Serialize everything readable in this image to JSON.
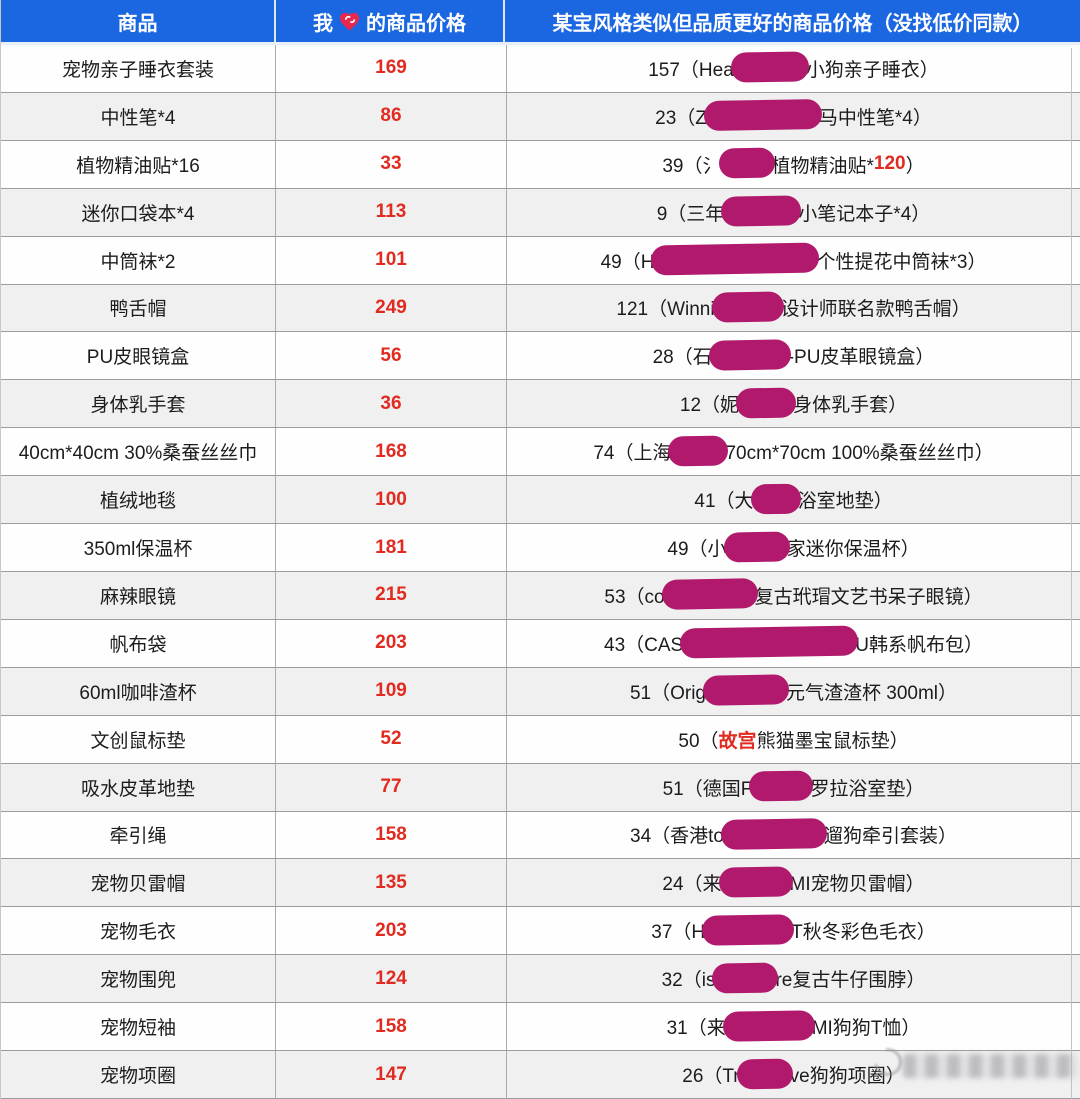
{
  "header": {
    "product": "商品",
    "my_price_prefix": "我",
    "my_price_suffix": "的商品价格",
    "heart_icon": "heart-sticker-icon",
    "compare": "某宝风格类似但品质更好的商品价格（没找低价同款）"
  },
  "colors": {
    "header_bg": "#1b67e2",
    "price_red": "#e12b20",
    "redaction_magenta": "#b11a6c",
    "row_alt_bg": "#f0f0f1"
  },
  "watermark_icon": "blurred-watermark",
  "rows": [
    {
      "product": "宠物亲子睡衣套装",
      "my_price": "169",
      "compare": [
        {
          "t": "157（Hea"
        },
        {
          "blob": 78
        },
        {
          "t": "小狗亲子睡衣）"
        }
      ]
    },
    {
      "product": "中性笔*4",
      "my_price": "86",
      "compare": [
        {
          "t": "23（Z"
        },
        {
          "blob": 118
        },
        {
          "t": "马中性笔*4）"
        }
      ]
    },
    {
      "product": "植物精油贴*16",
      "my_price": "33",
      "compare": [
        {
          "t": "39（氵"
        },
        {
          "blob": 56
        },
        {
          "t": "植物精油贴*"
        },
        {
          "t": "120",
          "red": true
        },
        {
          "t": "）"
        }
      ]
    },
    {
      "product": "迷你口袋本*4",
      "my_price": "113",
      "compare": [
        {
          "t": "9（三年"
        },
        {
          "blob": 80
        },
        {
          "t": "小笔记本子*4）"
        }
      ]
    },
    {
      "product": "中筒袜*2",
      "my_price": "101",
      "compare": [
        {
          "t": "49（H"
        },
        {
          "blob": 168
        },
        {
          "t": "个性提花中筒袜*3）"
        }
      ]
    },
    {
      "product": "鸭舌帽",
      "my_price": "249",
      "compare": [
        {
          "t": "121（Winni"
        },
        {
          "blob": 72
        },
        {
          "t": "设计师联名款鸭舌帽）"
        }
      ]
    },
    {
      "product": "PU皮眼镜盒",
      "my_price": "56",
      "compare": [
        {
          "t": "28（石"
        },
        {
          "blob": 82
        },
        {
          "t": "-PU皮革眼镜盒）"
        }
      ]
    },
    {
      "product": "身体乳手套",
      "my_price": "36",
      "compare": [
        {
          "t": "12（妮"
        },
        {
          "blob": 60
        },
        {
          "t": "身体乳手套）"
        }
      ]
    },
    {
      "product": "40cm*40cm 30%桑蚕丝丝巾",
      "my_price": "168",
      "compare": [
        {
          "t": "74（上海"
        },
        {
          "blob": 60
        },
        {
          "t": "70cm*70cm 100%桑蚕丝丝巾）"
        }
      ]
    },
    {
      "product": "植绒地毯",
      "my_price": "100",
      "compare": [
        {
          "t": "41（大"
        },
        {
          "blob": 50
        },
        {
          "t": "浴室地垫）"
        }
      ]
    },
    {
      "product": "350ml保温杯",
      "my_price": "181",
      "compare": [
        {
          "t": "49（小"
        },
        {
          "blob": 66
        },
        {
          "t": "家迷你保温杯）"
        }
      ]
    },
    {
      "product": "麻辣眼镜",
      "my_price": "215",
      "compare": [
        {
          "t": "53（co"
        },
        {
          "blob": 96
        },
        {
          "t": "复古玳瑁文艺书呆子眼镜）"
        }
      ]
    },
    {
      "product": "帆布袋",
      "my_price": "203",
      "compare": [
        {
          "t": "43（CAS"
        },
        {
          "blob": 178
        },
        {
          "t": "U韩系帆布包）"
        }
      ]
    },
    {
      "product": "60ml咖啡渣杯",
      "my_price": "109",
      "compare": [
        {
          "t": "51（Orig"
        },
        {
          "blob": 86
        },
        {
          "t": "元气渣渣杯 300ml）"
        }
      ]
    },
    {
      "product": "文创鼠标垫",
      "my_price": "52",
      "compare": [
        {
          "t": "50（"
        },
        {
          "t": "故宫",
          "red": true
        },
        {
          "t": "熊猫墨宝鼠标垫）"
        }
      ]
    },
    {
      "product": "吸水皮革地垫",
      "my_price": "77",
      "compare": [
        {
          "t": "51（德国F"
        },
        {
          "blob": 64
        },
        {
          "t": "罗拉浴室垫）"
        }
      ]
    },
    {
      "product": "牵引绳",
      "my_price": "158",
      "compare": [
        {
          "t": "34（香港to"
        },
        {
          "blob": 106
        },
        {
          "t": "遛狗牵引套装）"
        }
      ]
    },
    {
      "product": "宠物贝雷帽",
      "my_price": "135",
      "compare": [
        {
          "t": "24（来"
        },
        {
          "blob": 74
        },
        {
          "t": "MI宠物贝雷帽）"
        }
      ]
    },
    {
      "product": "宠物毛衣",
      "my_price": "203",
      "compare": [
        {
          "t": "37（H"
        },
        {
          "blob": 92
        },
        {
          "t": "T秋冬彩色毛衣）"
        }
      ]
    },
    {
      "product": "宠物围兜",
      "my_price": "124",
      "compare": [
        {
          "t": "32（is"
        },
        {
          "blob": 66
        },
        {
          "t": "re复古牛仔围脖）"
        }
      ]
    },
    {
      "product": "宠物短袖",
      "my_price": "158",
      "compare": [
        {
          "t": "31（来"
        },
        {
          "blob": 92
        },
        {
          "t": "MI狗狗T恤）"
        }
      ]
    },
    {
      "product": "宠物项圈",
      "my_price": "147",
      "compare": [
        {
          "t": "26（Tr"
        },
        {
          "blob": 56
        },
        {
          "t": "ve狗狗项圈）"
        }
      ]
    }
  ]
}
